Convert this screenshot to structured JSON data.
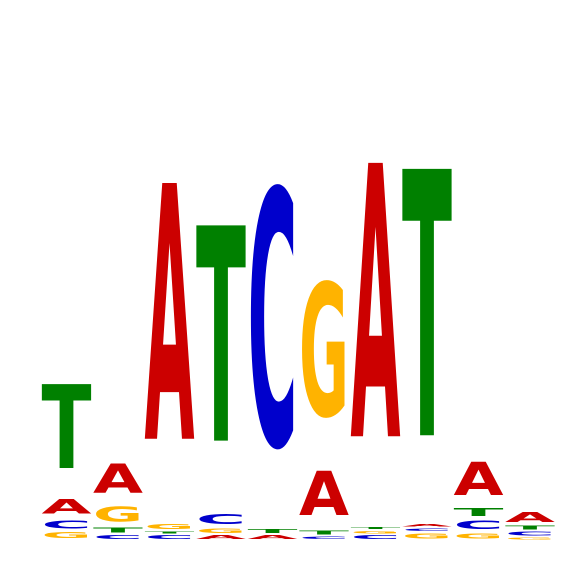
{
  "chart_data": {
    "type": "sequence-logo",
    "title": "",
    "xlabel": "",
    "ylabel": "",
    "colors": {
      "A": "#cc0000",
      "C": "#0000cc",
      "G": "#ffb300",
      "T": "#008000"
    },
    "positions": [
      {
        "stack": [
          {
            "letter": "G",
            "height": 0.08
          },
          {
            "letter": "C",
            "height": 0.11
          },
          {
            "letter": "A",
            "height": 0.2
          },
          {
            "letter": "T",
            "height": 1.18
          }
        ]
      },
      {
        "stack": [
          {
            "letter": "C",
            "height": 0.05
          },
          {
            "letter": "T",
            "height": 0.07
          },
          {
            "letter": "G",
            "height": 0.21
          },
          {
            "letter": "A",
            "height": 0.41
          }
        ]
      },
      {
        "stack": [
          {
            "letter": "C",
            "height": 0.05
          },
          {
            "letter": "T",
            "height": 0.03
          },
          {
            "letter": "G",
            "height": 0.07
          },
          {
            "letter": "A",
            "height": 3.6
          }
        ]
      },
      {
        "stack": [
          {
            "letter": "A",
            "height": 0.05
          },
          {
            "letter": "G",
            "height": 0.06
          },
          {
            "letter": "C",
            "height": 0.14
          },
          {
            "letter": "T",
            "height": 3.03
          }
        ]
      },
      {
        "stack": [
          {
            "letter": "A",
            "height": 0.05
          },
          {
            "letter": "T",
            "height": 0.05
          },
          {
            "letter": "C",
            "height": 3.6
          }
        ]
      },
      {
        "stack": [
          {
            "letter": "C",
            "height": 0.04
          },
          {
            "letter": "T",
            "height": 0.05
          },
          {
            "letter": "A",
            "height": 0.62
          },
          {
            "letter": "G",
            "height": 1.87
          }
        ]
      },
      {
        "stack": [
          {
            "letter": "C",
            "height": 0.05
          },
          {
            "letter": "G",
            "height": 0.04
          },
          {
            "letter": "T",
            "height": 0.03
          },
          {
            "letter": "A",
            "height": 3.85
          }
        ]
      },
      {
        "stack": [
          {
            "letter": "G",
            "height": 0.07
          },
          {
            "letter": "C",
            "height": 0.04
          },
          {
            "letter": "A",
            "height": 0.04
          },
          {
            "letter": "T",
            "height": 3.75
          }
        ]
      },
      {
        "stack": [
          {
            "letter": "G",
            "height": 0.07
          },
          {
            "letter": "C",
            "height": 0.12
          },
          {
            "letter": "T",
            "height": 0.11
          },
          {
            "letter": "A",
            "height": 0.47
          }
        ]
      },
      {
        "stack": [
          {
            "letter": "G",
            "height": 0.03
          },
          {
            "letter": "C",
            "height": 0.05
          },
          {
            "letter": "T",
            "height": 0.05
          },
          {
            "letter": "A",
            "height": 0.14
          }
        ]
      }
    ],
    "ylim": [
      0,
      4
    ],
    "grid": false,
    "legend": "none"
  }
}
